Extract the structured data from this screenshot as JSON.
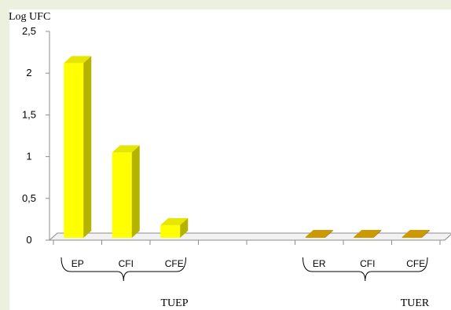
{
  "colors": {
    "background": "#ebf1de",
    "plot_area": "#ffffff",
    "bar_yellow": "#ffff00",
    "bar_yellow_side": "#b3b300",
    "bar_yellow_top": "#e6e600",
    "bar_orange": "#cc9900",
    "bar_orange_side": "#996600",
    "floor": "#f2f2f2",
    "axis": "#8c8c8c"
  },
  "chart_data": {
    "type": "bar",
    "ylabel": "Log UFC",
    "ylim": [
      0,
      2.5
    ],
    "yticks": [
      "0",
      "0,5",
      "1",
      "1,5",
      "2",
      "2,5"
    ],
    "categories": [
      "EP",
      "CFI",
      "CFE",
      "",
      "",
      "ER",
      "CFI",
      "CFE"
    ],
    "values": [
      2.12,
      1.05,
      0.18,
      null,
      null,
      0.02,
      0.02,
      0.02
    ],
    "groups": [
      {
        "label": "TUEP",
        "categories": [
          "EP",
          "CFI",
          "CFE"
        ]
      },
      {
        "label": "TUER",
        "categories": [
          "ER",
          "CFI",
          "CFE"
        ]
      }
    ],
    "grid": false,
    "style": "3d-bar"
  }
}
